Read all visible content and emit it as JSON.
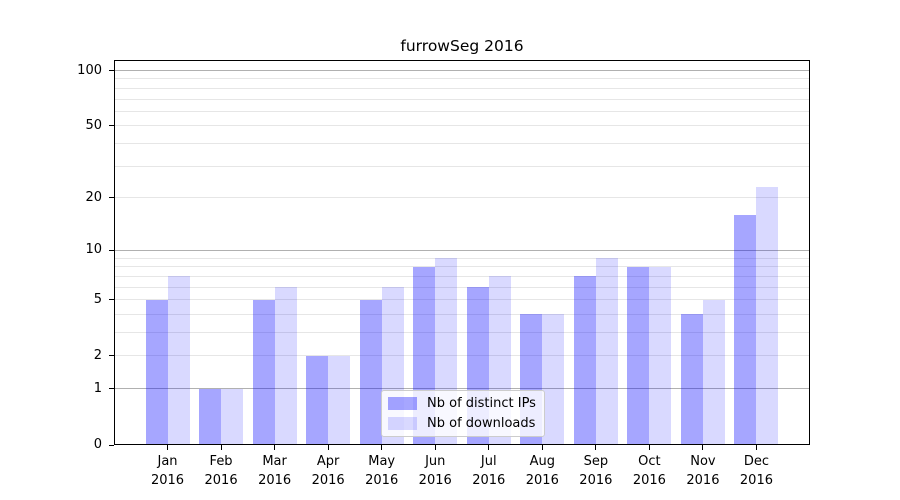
{
  "chart_data": {
    "type": "bar",
    "title": "furrowSeg 2016",
    "categories": [
      "Jan",
      "Feb",
      "Mar",
      "Apr",
      "May",
      "Jun",
      "Jul",
      "Aug",
      "Sep",
      "Oct",
      "Nov",
      "Dec"
    ],
    "year_label": "2016",
    "series": [
      {
        "name": "Nb of distinct IPs",
        "color": "rgba(0,0,255,0.35)",
        "values": [
          5,
          1,
          5,
          2,
          5,
          8,
          6,
          4,
          7,
          8,
          4,
          16
        ]
      },
      {
        "name": "Nb of downloads",
        "color": "rgba(0,0,255,0.15)",
        "values": [
          7,
          1,
          6,
          2,
          6,
          9,
          7,
          4,
          9,
          8,
          5,
          23
        ]
      }
    ],
    "xlabel": "",
    "ylabel": "",
    "yscale": "log1p",
    "ylim": [
      0,
      114
    ],
    "yticks": [
      100,
      50,
      20,
      10,
      5,
      2,
      1,
      0
    ],
    "major_gridlines": [
      1,
      10,
      100
    ],
    "minor_gridlines": [
      2,
      3,
      4,
      5,
      6,
      7,
      8,
      9,
      20,
      30,
      40,
      50,
      60,
      70,
      80,
      90
    ],
    "grid": true,
    "legend_position": "lower-center-inside",
    "colors": {
      "major_grid": "#b0b0b0",
      "minor_grid": "#e6e6e6",
      "axis": "#000000",
      "background": "#ffffff"
    }
  }
}
